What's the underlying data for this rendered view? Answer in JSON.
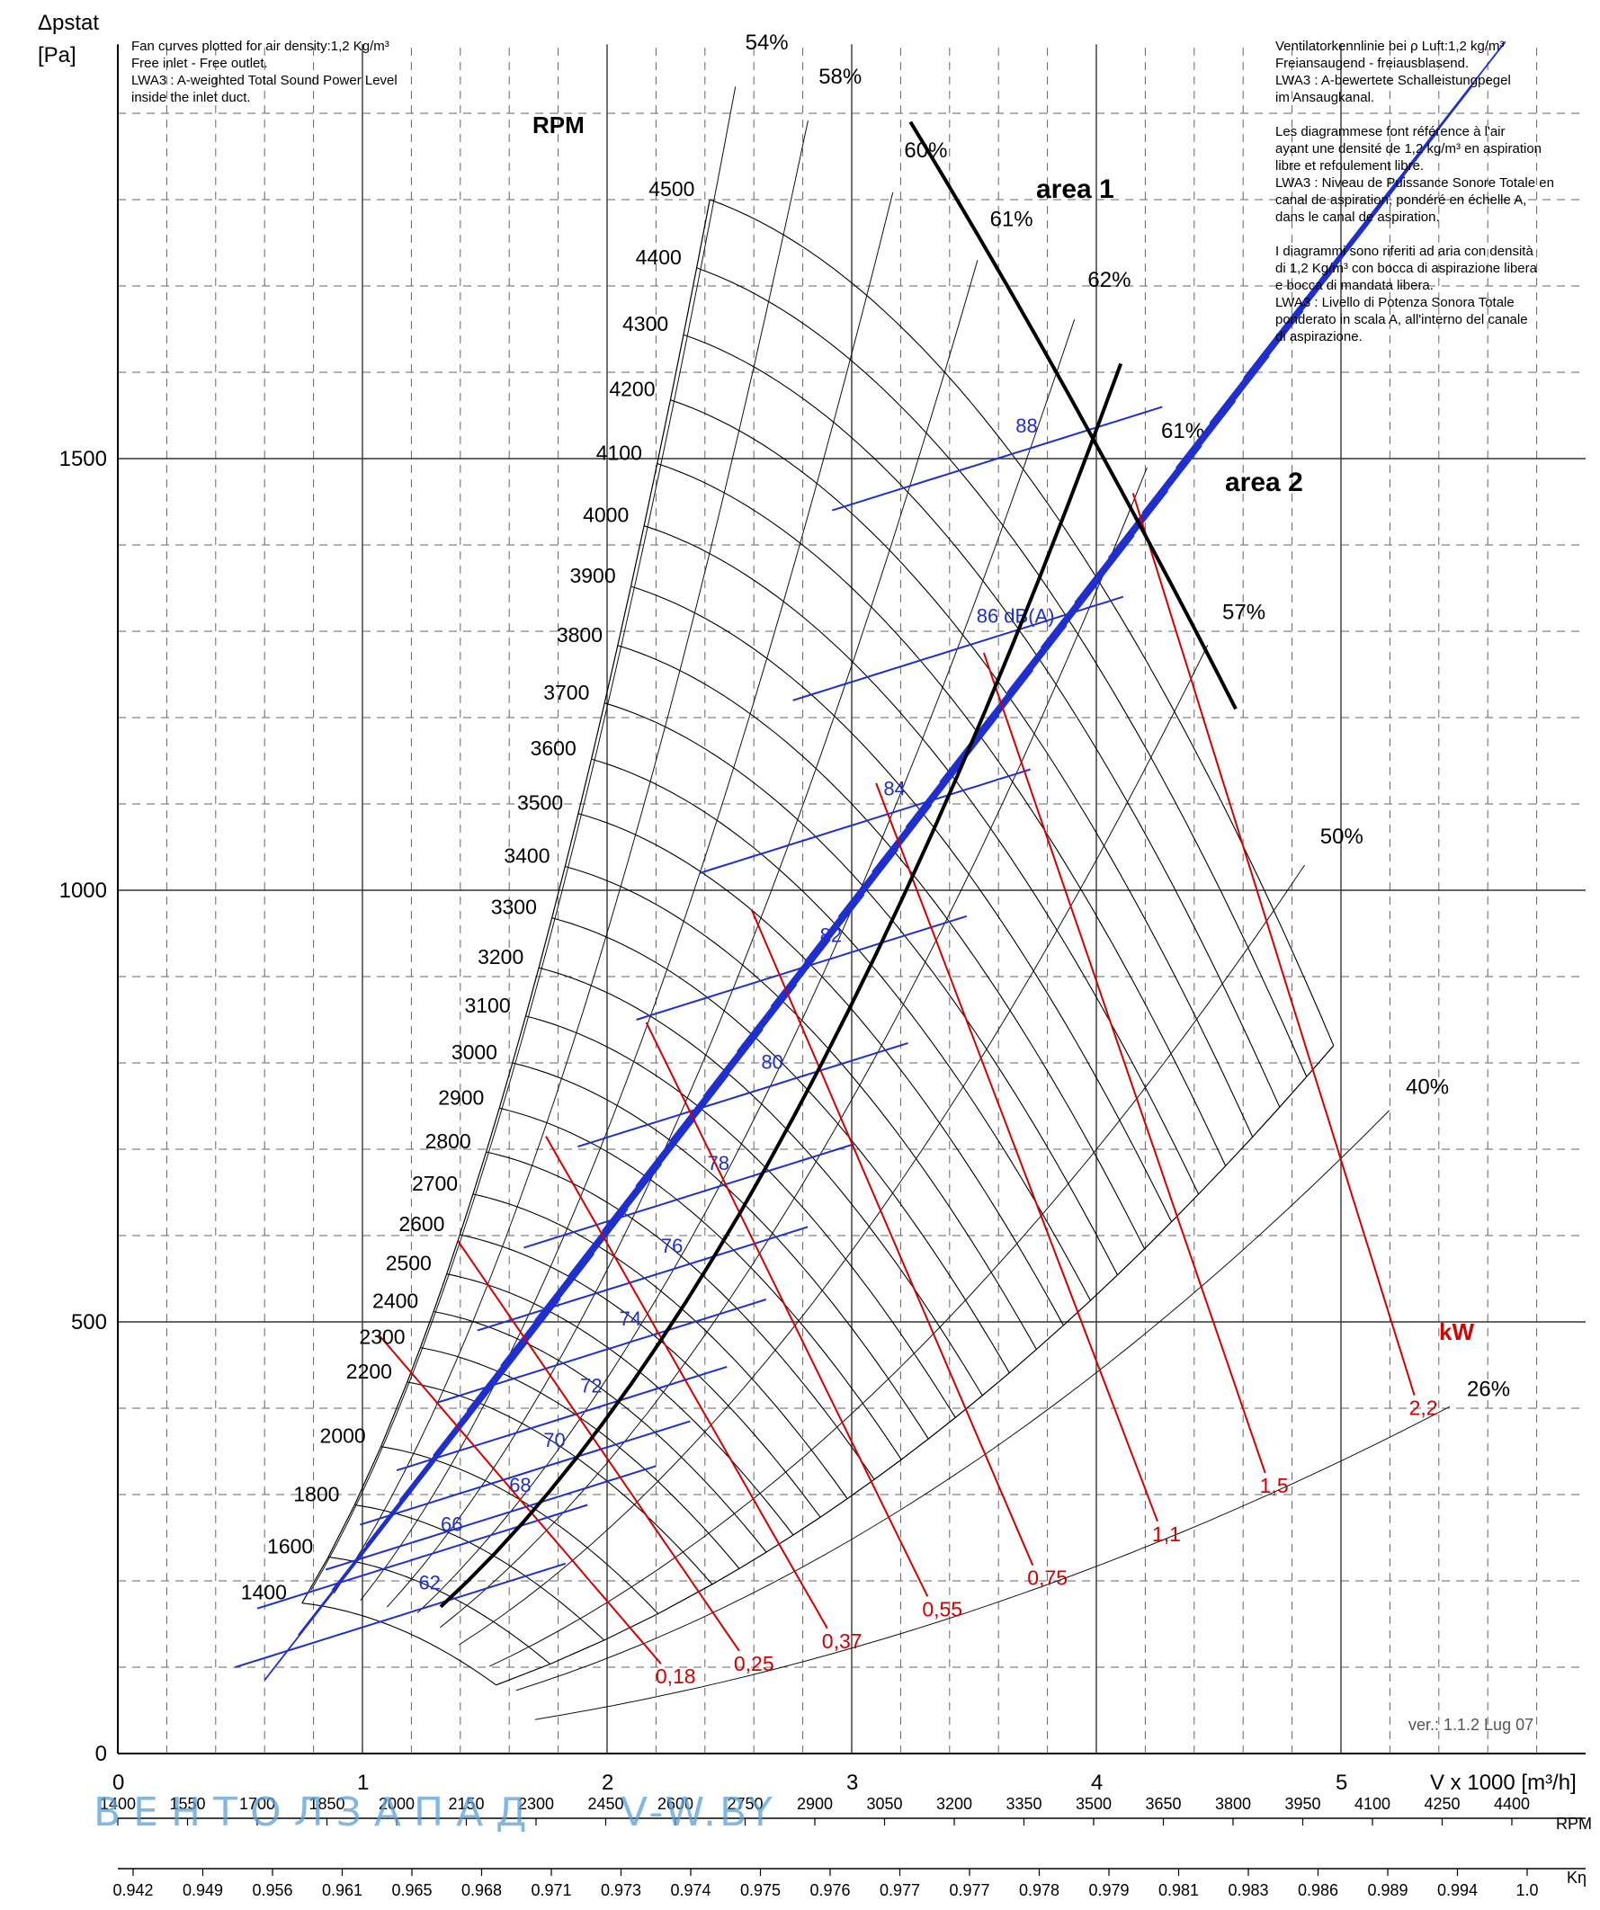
{
  "header": {
    "y_label": "Δpstat",
    "y_unit": "[Pa]",
    "x_label": "V x 1000 [m³/h]",
    "rpm_title": "RPM",
    "kw_title": "kW",
    "notes_left": "Fan curves plotted for air density:1,2 Kg/m³\nFree inlet - Free outlet.\nLWA3 : A-weighted Total Sound Power Level\ninside the inlet duct.",
    "notes_right": "Ventilatorkennlinie bei ρ Luft:1,2 kg/m³\nFreiansaugend - freiausblasend.\nLWA3 : A-bewertete Schalleistungpegel\nim Ansaugkanal.\n\nLes diagrammese font référence à l'air\nayant une densité de 1,2 kg/m³ en aspiration\nlibre et refoulement libre.\nLWA3 : Niveau de Puissance Sonore Totale en\ncanal de aspiration, pondéré en échelle A,\ndans le canal de aspiration.\n\nI diagrammi sono riferiti ad aria con densità\ndi 1,2 Kg/m³ con bocca di aspirazione libera\ne bocca di mandata libera.\nLWA3 : Livello di Potenza Sonora Totale\nponderato in scala A, all'interno del canale\ndi aspirazione.",
    "version": "ver.: 1.1.2 Lug 07",
    "watermark_left": "ВЕНТОЛЗАПАД",
    "watermark_right": "V-W.BY",
    "area1": "area 1",
    "area2": "area 2",
    "rpm_axis_label": "RPM",
    "k_axis_label": "Kη"
  },
  "chart_data": {
    "type": "line",
    "x_axis": {
      "label": "V x 1000 [m³/h]",
      "range": [
        0,
        6
      ],
      "ticks": [
        0,
        1,
        2,
        3,
        4,
        5
      ]
    },
    "y_axis": {
      "label": "Δpstat [Pa]",
      "range": [
        0,
        2000
      ],
      "ticks": [
        0,
        500,
        1000,
        1500
      ]
    },
    "grid": true,
    "rpm_curves": [
      1400,
      1600,
      1800,
      2000,
      2200,
      2300,
      2400,
      2500,
      2600,
      2700,
      2800,
      2900,
      3000,
      3100,
      3200,
      3300,
      3400,
      3500,
      3600,
      3700,
      3800,
      3900,
      4000,
      4100,
      4200,
      4300,
      4400,
      4500
    ],
    "rpm_labels": [
      "1400",
      "1600",
      "1800",
      "2000",
      "2200",
      "2300",
      "2400",
      "2500",
      "2600",
      "2700",
      "2800",
      "2900",
      "3000",
      "3100",
      "3200",
      "3300",
      "3400",
      "3500",
      "3600",
      "3700",
      "3800",
      "3900",
      "4000",
      "4100",
      "4200",
      "4300",
      "4400",
      "4500"
    ],
    "efficiency_lines": [
      {
        "label": "26%",
        "at": [
          5.5,
          410
        ]
      },
      {
        "label": "40%",
        "at": [
          5.25,
          760
        ]
      },
      {
        "label": "50%",
        "at": [
          4.9,
          1050
        ]
      },
      {
        "label": "57%",
        "at": [
          4.5,
          1310
        ]
      },
      {
        "label": "61%",
        "at": [
          4.25,
          1520
        ]
      },
      {
        "label": "62%",
        "at": [
          3.95,
          1695
        ]
      },
      {
        "label": "61%",
        "at": [
          3.55,
          1765
        ]
      },
      {
        "label": "60%",
        "at": [
          3.2,
          1845
        ]
      },
      {
        "label": "58%",
        "at": [
          2.85,
          1930
        ]
      },
      {
        "label": "54%",
        "at": [
          2.55,
          1970
        ]
      }
    ],
    "sound_levels": [
      {
        "label": "62",
        "at": [
          1.23,
          190
        ]
      },
      {
        "label": "66",
        "at": [
          1.32,
          258
        ]
      },
      {
        "label": "68",
        "at": [
          1.6,
          303
        ]
      },
      {
        "label": "70",
        "at": [
          1.74,
          355
        ]
      },
      {
        "label": "72",
        "at": [
          1.89,
          418
        ]
      },
      {
        "label": "74",
        "at": [
          2.05,
          496
        ]
      },
      {
        "label": "76",
        "at": [
          2.22,
          580
        ]
      },
      {
        "label": "78",
        "at": [
          2.41,
          676
        ]
      },
      {
        "label": "80",
        "at": [
          2.63,
          793
        ]
      },
      {
        "label": "82",
        "at": [
          2.87,
          940
        ]
      },
      {
        "label": "84",
        "at": [
          3.13,
          1110
        ]
      },
      {
        "label": "86 dB(A)",
        "at": [
          3.51,
          1310
        ]
      },
      {
        "label": "88",
        "at": [
          3.67,
          1530
        ]
      }
    ],
    "power_lines_kw": [
      {
        "label": "0,18",
        "at": [
          2.22,
          104
        ]
      },
      {
        "label": "0,25",
        "at": [
          2.54,
          119
        ]
      },
      {
        "label": "0,37",
        "at": [
          2.9,
          145
        ]
      },
      {
        "label": "0,55",
        "at": [
          3.31,
          182
        ]
      },
      {
        "label": "0,75",
        "at": [
          3.74,
          218
        ]
      },
      {
        "label": "1,1",
        "at": [
          4.25,
          269
        ]
      },
      {
        "label": "1,5",
        "at": [
          4.69,
          325
        ]
      },
      {
        "label": "2,2",
        "at": [
          5.3,
          415
        ]
      }
    ],
    "rpm_axis_bottom": [
      "1400",
      "1550",
      "1700",
      "1850",
      "2000",
      "2150",
      "2300",
      "2450",
      "2600",
      "2750",
      "2900",
      "3050",
      "3200",
      "3350",
      "3500",
      "3650",
      "3800",
      "3950",
      "4100",
      "4250",
      "4400"
    ],
    "k_axis_bottom": [
      "0.942",
      "0.949",
      "0.956",
      "0.961",
      "0.965",
      "0.968",
      "0.971",
      "0.973",
      "0.974",
      "0.975",
      "0.976",
      "0.977",
      "0.977",
      "0.978",
      "0.979",
      "0.981",
      "0.983",
      "0.986",
      "0.989",
      "0.994",
      "1.0"
    ],
    "colors": {
      "rpm": "#000000",
      "sound": "#1f2fd0",
      "power": "#d40000",
      "boundary": "#000000"
    }
  }
}
